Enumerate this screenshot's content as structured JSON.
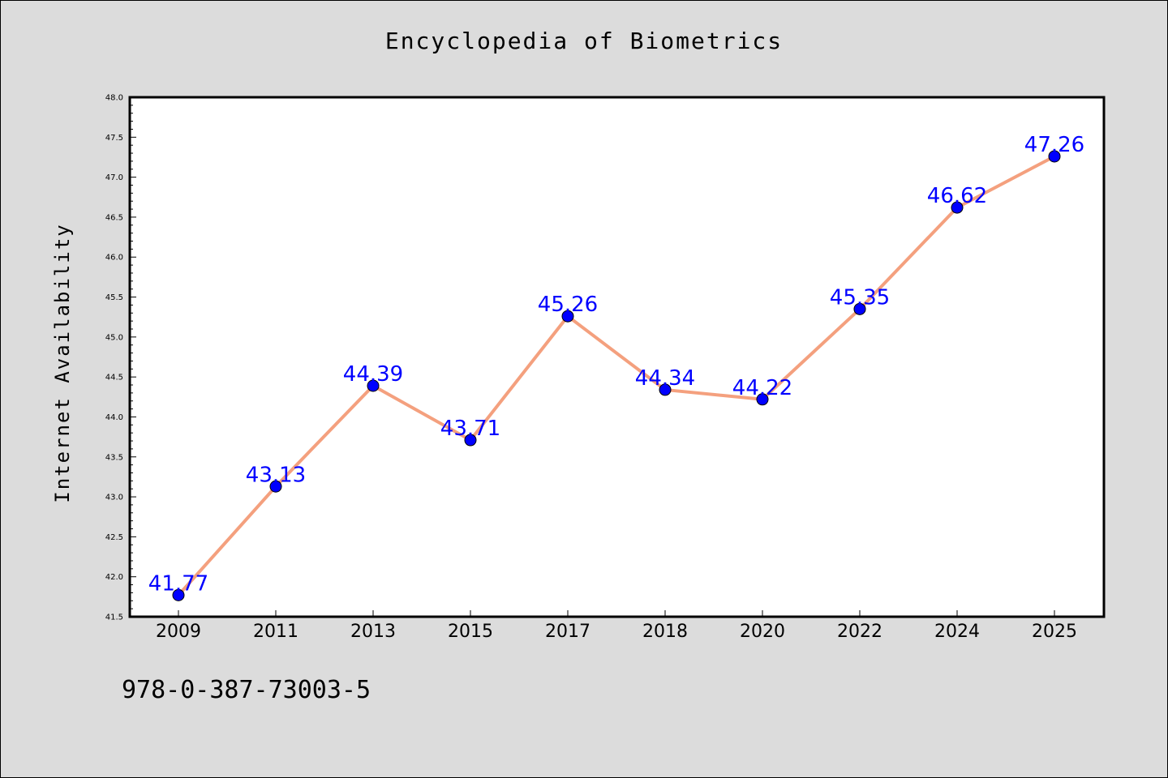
{
  "title": "Encyclopedia of Biometrics",
  "footer": "978-0-387-73003-5",
  "chart_data": {
    "type": "line",
    "title": "Encyclopedia of Biometrics",
    "xlabel": "",
    "ylabel": "Internet Availability",
    "categories": [
      "2009",
      "2011",
      "2013",
      "2015",
      "2017",
      "2018",
      "2020",
      "2022",
      "2024",
      "2025"
    ],
    "series": [
      {
        "values": [
          41.77,
          43.13,
          44.39,
          43.71,
          45.26,
          44.34,
          44.22,
          45.35,
          46.62,
          47.26
        ],
        "labels": [
          "41.77",
          "43.13",
          "44.39",
          "43.71",
          "45.26",
          "44.34",
          "44.22",
          "45.35",
          "46.62",
          "47.26"
        ]
      }
    ],
    "ylim": [
      41.5,
      48.0
    ],
    "yticks": [
      "41.5",
      "42.0",
      "42.5",
      "43.0",
      "43.5",
      "44.0",
      "44.5",
      "45.0",
      "45.5",
      "46.0",
      "46.5",
      "47.0",
      "47.5",
      "48.0"
    ],
    "grid": false,
    "legend": "none",
    "colors": {
      "line": "#f4a07e",
      "marker": "#0000ff",
      "label": "#0000ff"
    }
  }
}
